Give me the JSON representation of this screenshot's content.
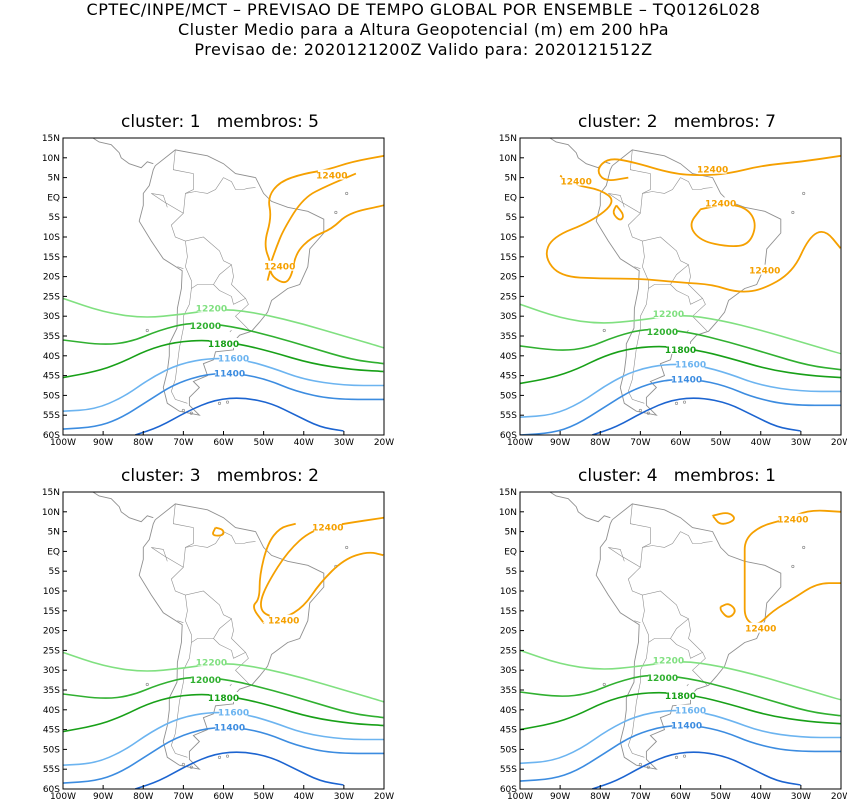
{
  "header": {
    "line1": "CPTEC/INPE/MCT – PREVISAO DE TEMPO GLOBAL POR ENSEMBLE – TQ0126L028",
    "line2": "Cluster Medio para a Altura Geopotencial (m) em 200 hPa",
    "line3": "Previsao de: 2020121200Z   Valido para: 2020121512Z"
  },
  "axes": {
    "lat_labels": [
      "15N",
      "10N",
      "5N",
      "EQ",
      "5S",
      "10S",
      "15S",
      "20S",
      "25S",
      "30S",
      "35S",
      "40S",
      "45S",
      "50S",
      "55S",
      "60S"
    ],
    "lon_labels": [
      "100W",
      "90W",
      "80W",
      "70W",
      "60W",
      "50W",
      "40W",
      "30W",
      "20W"
    ]
  },
  "colors": {
    "c12400": "#f5a000",
    "c12200": "#80e080",
    "c12000": "#30b030",
    "c11800": "#18a018",
    "c11600": "#6cb4f0",
    "c11400": "#3c8ce0",
    "c11200": "#1c64d0",
    "coast": "#909090"
  },
  "contour_labels": {
    "h12400": "12400",
    "h12200": "12200",
    "h12000": "12000",
    "h11800": "11800",
    "h11600": "11600",
    "h11400": "11400"
  },
  "panels": [
    {
      "cluster_label": "cluster:",
      "cluster": "1",
      "members_label": "membros:",
      "members": "5"
    },
    {
      "cluster_label": "cluster:",
      "cluster": "2",
      "members_label": "membros:",
      "members": "7"
    },
    {
      "cluster_label": "cluster:",
      "cluster": "3",
      "members_label": "membros:",
      "members": "2"
    },
    {
      "cluster_label": "cluster:",
      "cluster": "4",
      "members_label": "membros:",
      "members": "1"
    }
  ]
}
